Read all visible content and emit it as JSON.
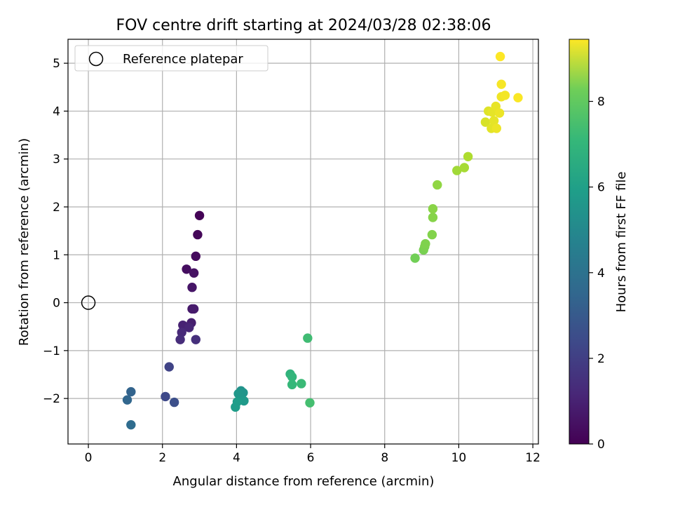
{
  "chart_data": {
    "type": "scatter",
    "title": "FOV centre drift starting at 2024/03/28 02:38:06",
    "xlabel": "Angular distance from reference (arcmin)",
    "ylabel": "Rotation from reference (arcmin)",
    "xlim": [
      -0.55,
      12.15
    ],
    "ylim": [
      -2.95,
      5.5
    ],
    "xticks": [
      0,
      2,
      4,
      6,
      8,
      10,
      12
    ],
    "yticks": [
      -2,
      -1,
      0,
      1,
      2,
      3,
      4,
      5
    ],
    "grid": true,
    "legend": {
      "position": "top-left",
      "entries": [
        "Reference platepar"
      ]
    },
    "reference_point": {
      "x": 0,
      "y": 0
    },
    "colorbar": {
      "label": "Hours from first FF file",
      "ticks": [
        0,
        2,
        4,
        6,
        8
      ],
      "range": [
        0,
        9.45
      ],
      "colormap": "viridis"
    },
    "points": [
      {
        "x": 3.0,
        "y": 1.82,
        "c": 0.05
      },
      {
        "x": 2.95,
        "y": 1.42,
        "c": 0.15
      },
      {
        "x": 2.9,
        "y": 0.97,
        "c": 0.25
      },
      {
        "x": 2.65,
        "y": 0.7,
        "c": 0.35
      },
      {
        "x": 2.85,
        "y": 0.62,
        "c": 0.45
      },
      {
        "x": 2.8,
        "y": 0.32,
        "c": 0.55
      },
      {
        "x": 2.8,
        "y": -0.13,
        "c": 0.65
      },
      {
        "x": 2.85,
        "y": -0.13,
        "c": 0.7
      },
      {
        "x": 2.78,
        "y": -0.42,
        "c": 0.8
      },
      {
        "x": 2.55,
        "y": -0.47,
        "c": 0.9
      },
      {
        "x": 2.72,
        "y": -0.52,
        "c": 1.0
      },
      {
        "x": 2.52,
        "y": -0.62,
        "c": 1.1
      },
      {
        "x": 2.48,
        "y": -0.77,
        "c": 1.2
      },
      {
        "x": 2.9,
        "y": -0.77,
        "c": 1.3
      },
      {
        "x": 2.18,
        "y": -1.34,
        "c": 1.9
      },
      {
        "x": 2.08,
        "y": -1.96,
        "c": 2.1
      },
      {
        "x": 2.32,
        "y": -2.08,
        "c": 2.3
      },
      {
        "x": 1.15,
        "y": -1.86,
        "c": 3.0
      },
      {
        "x": 1.05,
        "y": -2.03,
        "c": 3.1
      },
      {
        "x": 1.15,
        "y": -2.55,
        "c": 3.3
      },
      {
        "x": 4.12,
        "y": -1.84,
        "c": 4.8
      },
      {
        "x": 4.18,
        "y": -1.88,
        "c": 4.9
      },
      {
        "x": 4.05,
        "y": -1.9,
        "c": 5.0
      },
      {
        "x": 4.1,
        "y": -2.0,
        "c": 5.0
      },
      {
        "x": 4.2,
        "y": -2.05,
        "c": 5.1
      },
      {
        "x": 4.02,
        "y": -2.07,
        "c": 5.2
      },
      {
        "x": 3.97,
        "y": -2.18,
        "c": 5.2
      },
      {
        "x": 5.45,
        "y": -1.49,
        "c": 6.1
      },
      {
        "x": 5.5,
        "y": -1.55,
        "c": 6.2
      },
      {
        "x": 5.5,
        "y": -1.71,
        "c": 6.3
      },
      {
        "x": 5.75,
        "y": -1.69,
        "c": 6.4
      },
      {
        "x": 5.92,
        "y": -0.74,
        "c": 6.5
      },
      {
        "x": 5.98,
        "y": -2.09,
        "c": 6.6
      },
      {
        "x": 8.82,
        "y": 0.93,
        "c": 7.4
      },
      {
        "x": 9.05,
        "y": 1.1,
        "c": 7.5
      },
      {
        "x": 9.08,
        "y": 1.17,
        "c": 7.55
      },
      {
        "x": 9.1,
        "y": 1.23,
        "c": 7.6
      },
      {
        "x": 9.28,
        "y": 1.42,
        "c": 7.65
      },
      {
        "x": 9.3,
        "y": 1.78,
        "c": 7.7
      },
      {
        "x": 9.3,
        "y": 1.96,
        "c": 7.75
      },
      {
        "x": 9.42,
        "y": 2.46,
        "c": 7.85
      },
      {
        "x": 9.95,
        "y": 2.76,
        "c": 8.1
      },
      {
        "x": 10.15,
        "y": 2.82,
        "c": 8.2
      },
      {
        "x": 10.25,
        "y": 3.05,
        "c": 8.3
      },
      {
        "x": 10.72,
        "y": 3.77,
        "c": 8.9
      },
      {
        "x": 10.8,
        "y": 4.0,
        "c": 9.0
      },
      {
        "x": 10.88,
        "y": 3.64,
        "c": 9.05
      },
      {
        "x": 10.95,
        "y": 3.8,
        "c": 9.1
      },
      {
        "x": 10.9,
        "y": 3.98,
        "c": 9.1
      },
      {
        "x": 11.0,
        "y": 4.1,
        "c": 9.15
      },
      {
        "x": 11.02,
        "y": 3.64,
        "c": 9.2
      },
      {
        "x": 11.1,
        "y": 3.96,
        "c": 9.2
      },
      {
        "x": 11.15,
        "y": 4.3,
        "c": 9.25
      },
      {
        "x": 11.25,
        "y": 4.33,
        "c": 9.3
      },
      {
        "x": 11.15,
        "y": 4.56,
        "c": 9.35
      },
      {
        "x": 11.6,
        "y": 4.28,
        "c": 9.4
      },
      {
        "x": 11.12,
        "y": 5.14,
        "c": 9.45
      }
    ]
  }
}
